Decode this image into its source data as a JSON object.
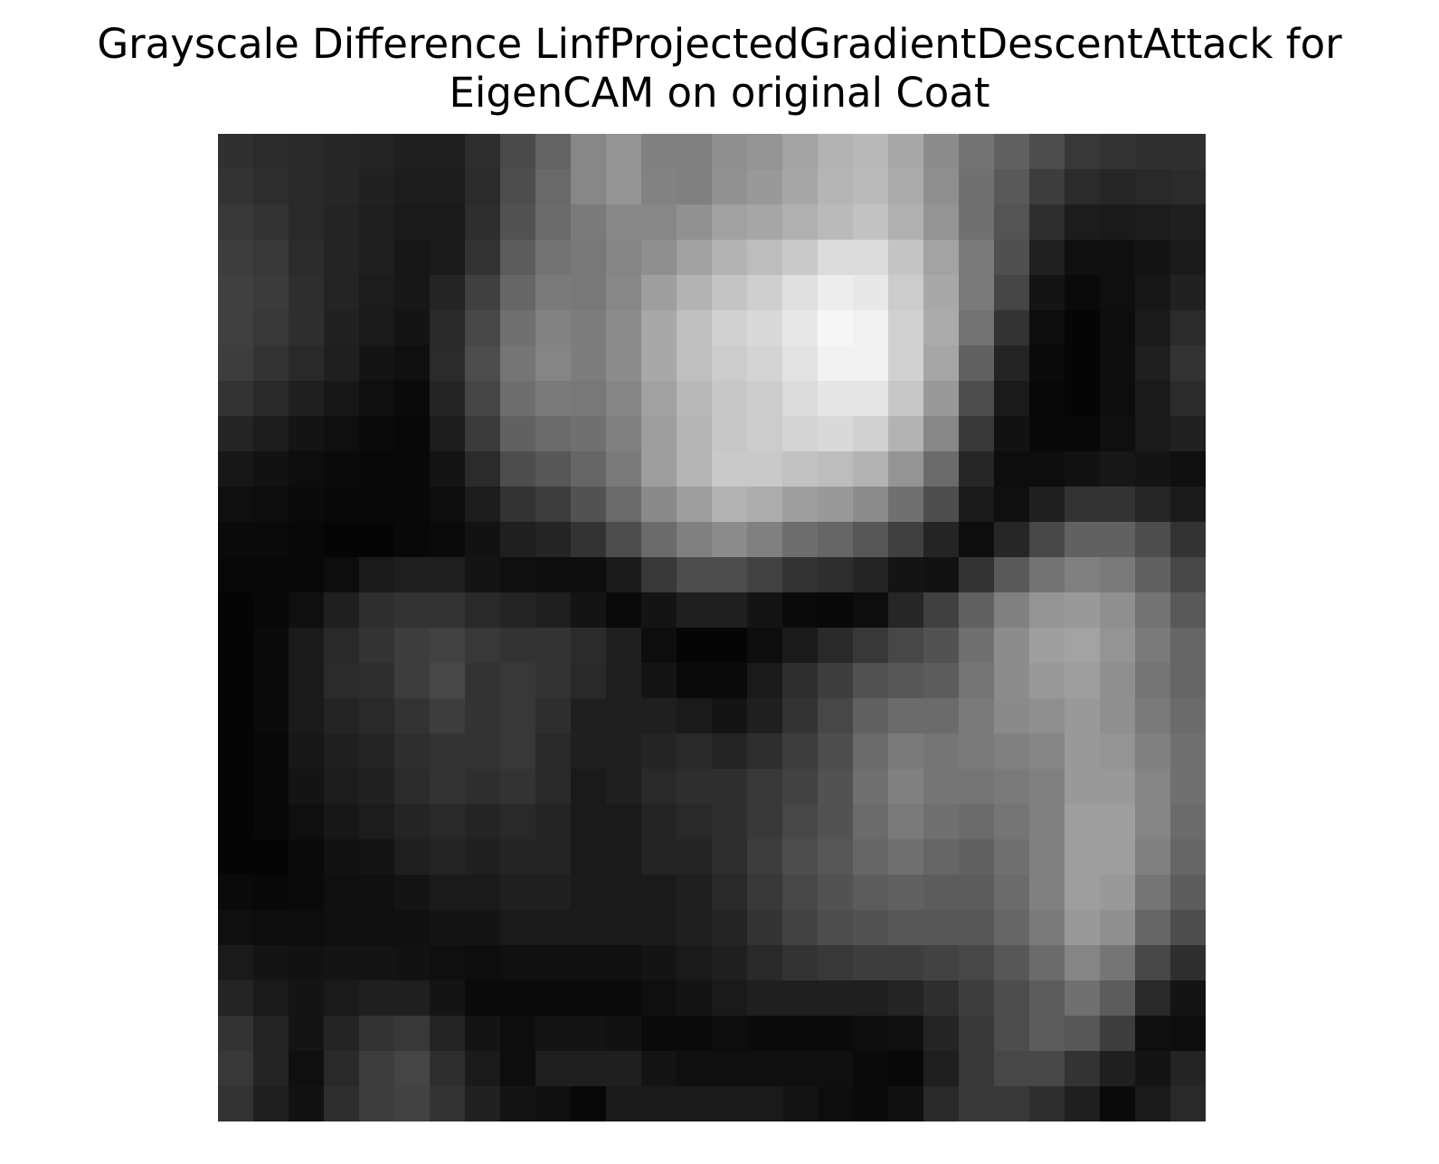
{
  "chart_data": {
    "type": "heatmap",
    "title": "Grayscale Difference LinfProjectedGradientDescentAttack for\nEigenCAM on original Coat",
    "colormap": "gray",
    "axes_visible": false,
    "grid": false,
    "rows": 28,
    "cols": 28,
    "values": [
      [
        0.19,
        0.17,
        0.16,
        0.15,
        0.14,
        0.12,
        0.12,
        0.18,
        0.29,
        0.39,
        0.53,
        0.58,
        0.5,
        0.5,
        0.56,
        0.58,
        0.64,
        0.7,
        0.72,
        0.66,
        0.55,
        0.45,
        0.38,
        0.3,
        0.22,
        0.2,
        0.19,
        0.19
      ],
      [
        0.2,
        0.18,
        0.16,
        0.15,
        0.13,
        0.11,
        0.11,
        0.17,
        0.3,
        0.41,
        0.53,
        0.58,
        0.51,
        0.5,
        0.57,
        0.6,
        0.65,
        0.71,
        0.73,
        0.67,
        0.56,
        0.44,
        0.35,
        0.24,
        0.17,
        0.15,
        0.16,
        0.17
      ],
      [
        0.22,
        0.2,
        0.16,
        0.14,
        0.12,
        0.1,
        0.1,
        0.18,
        0.32,
        0.42,
        0.48,
        0.53,
        0.53,
        0.57,
        0.63,
        0.65,
        0.69,
        0.73,
        0.76,
        0.69,
        0.58,
        0.44,
        0.33,
        0.18,
        0.11,
        0.1,
        0.11,
        0.12
      ],
      [
        0.24,
        0.22,
        0.17,
        0.14,
        0.12,
        0.09,
        0.1,
        0.2,
        0.36,
        0.45,
        0.47,
        0.52,
        0.56,
        0.63,
        0.7,
        0.74,
        0.79,
        0.86,
        0.86,
        0.77,
        0.64,
        0.48,
        0.31,
        0.13,
        0.06,
        0.06,
        0.08,
        0.1
      ],
      [
        0.25,
        0.23,
        0.18,
        0.14,
        0.11,
        0.09,
        0.14,
        0.25,
        0.4,
        0.48,
        0.47,
        0.53,
        0.62,
        0.7,
        0.77,
        0.81,
        0.88,
        0.93,
        0.91,
        0.8,
        0.66,
        0.48,
        0.27,
        0.08,
        0.04,
        0.06,
        0.09,
        0.13
      ],
      [
        0.25,
        0.22,
        0.18,
        0.13,
        0.1,
        0.08,
        0.16,
        0.28,
        0.44,
        0.51,
        0.49,
        0.55,
        0.66,
        0.75,
        0.82,
        0.85,
        0.91,
        0.97,
        0.95,
        0.82,
        0.67,
        0.45,
        0.2,
        0.05,
        0.02,
        0.05,
        0.1,
        0.17
      ],
      [
        0.24,
        0.2,
        0.16,
        0.12,
        0.08,
        0.06,
        0.17,
        0.3,
        0.46,
        0.52,
        0.49,
        0.55,
        0.66,
        0.75,
        0.8,
        0.83,
        0.89,
        0.95,
        0.95,
        0.82,
        0.65,
        0.38,
        0.14,
        0.04,
        0.02,
        0.05,
        0.12,
        0.2
      ],
      [
        0.2,
        0.16,
        0.12,
        0.09,
        0.06,
        0.04,
        0.14,
        0.27,
        0.43,
        0.48,
        0.47,
        0.52,
        0.63,
        0.72,
        0.78,
        0.8,
        0.86,
        0.9,
        0.9,
        0.78,
        0.6,
        0.3,
        0.1,
        0.03,
        0.02,
        0.05,
        0.1,
        0.17
      ],
      [
        0.14,
        0.11,
        0.08,
        0.06,
        0.04,
        0.03,
        0.11,
        0.23,
        0.38,
        0.42,
        0.44,
        0.5,
        0.62,
        0.71,
        0.78,
        0.8,
        0.83,
        0.85,
        0.82,
        0.7,
        0.53,
        0.22,
        0.07,
        0.03,
        0.03,
        0.06,
        0.1,
        0.13
      ],
      [
        0.09,
        0.07,
        0.05,
        0.04,
        0.03,
        0.03,
        0.08,
        0.17,
        0.3,
        0.34,
        0.4,
        0.48,
        0.62,
        0.71,
        0.79,
        0.79,
        0.76,
        0.74,
        0.7,
        0.58,
        0.42,
        0.15,
        0.05,
        0.05,
        0.07,
        0.09,
        0.08,
        0.06
      ],
      [
        0.06,
        0.05,
        0.04,
        0.03,
        0.03,
        0.03,
        0.05,
        0.11,
        0.2,
        0.24,
        0.32,
        0.42,
        0.54,
        0.62,
        0.7,
        0.68,
        0.62,
        0.6,
        0.55,
        0.44,
        0.3,
        0.1,
        0.06,
        0.12,
        0.2,
        0.2,
        0.15,
        0.1
      ],
      [
        0.04,
        0.04,
        0.03,
        0.02,
        0.02,
        0.03,
        0.04,
        0.07,
        0.12,
        0.14,
        0.2,
        0.3,
        0.42,
        0.5,
        0.55,
        0.5,
        0.43,
        0.4,
        0.34,
        0.25,
        0.14,
        0.05,
        0.15,
        0.28,
        0.38,
        0.38,
        0.3,
        0.2
      ],
      [
        0.03,
        0.03,
        0.03,
        0.05,
        0.1,
        0.12,
        0.12,
        0.08,
        0.06,
        0.05,
        0.05,
        0.1,
        0.22,
        0.3,
        0.3,
        0.26,
        0.2,
        0.18,
        0.14,
        0.08,
        0.07,
        0.2,
        0.35,
        0.45,
        0.5,
        0.48,
        0.38,
        0.28
      ],
      [
        0.02,
        0.03,
        0.06,
        0.12,
        0.18,
        0.2,
        0.2,
        0.16,
        0.14,
        0.12,
        0.08,
        0.04,
        0.08,
        0.12,
        0.12,
        0.08,
        0.04,
        0.03,
        0.05,
        0.15,
        0.25,
        0.38,
        0.5,
        0.58,
        0.6,
        0.56,
        0.45,
        0.35
      ],
      [
        0.02,
        0.04,
        0.1,
        0.16,
        0.2,
        0.24,
        0.26,
        0.22,
        0.2,
        0.2,
        0.17,
        0.12,
        0.05,
        0.02,
        0.02,
        0.05,
        0.1,
        0.16,
        0.22,
        0.28,
        0.32,
        0.44,
        0.55,
        0.62,
        0.64,
        0.58,
        0.48,
        0.4
      ],
      [
        0.02,
        0.04,
        0.1,
        0.17,
        0.18,
        0.24,
        0.28,
        0.2,
        0.22,
        0.2,
        0.16,
        0.12,
        0.08,
        0.04,
        0.04,
        0.1,
        0.18,
        0.24,
        0.32,
        0.34,
        0.36,
        0.46,
        0.55,
        0.6,
        0.62,
        0.56,
        0.46,
        0.4
      ],
      [
        0.02,
        0.04,
        0.1,
        0.14,
        0.16,
        0.2,
        0.24,
        0.2,
        0.22,
        0.18,
        0.12,
        0.12,
        0.12,
        0.1,
        0.08,
        0.12,
        0.2,
        0.28,
        0.38,
        0.42,
        0.42,
        0.48,
        0.54,
        0.56,
        0.6,
        0.56,
        0.48,
        0.42
      ],
      [
        0.02,
        0.03,
        0.09,
        0.12,
        0.14,
        0.18,
        0.2,
        0.2,
        0.22,
        0.16,
        0.12,
        0.12,
        0.14,
        0.16,
        0.14,
        0.18,
        0.24,
        0.3,
        0.42,
        0.48,
        0.46,
        0.48,
        0.5,
        0.52,
        0.6,
        0.58,
        0.5,
        0.44
      ],
      [
        0.02,
        0.03,
        0.08,
        0.11,
        0.13,
        0.17,
        0.2,
        0.18,
        0.2,
        0.16,
        0.1,
        0.12,
        0.16,
        0.18,
        0.18,
        0.22,
        0.26,
        0.32,
        0.44,
        0.5,
        0.46,
        0.46,
        0.48,
        0.5,
        0.6,
        0.6,
        0.52,
        0.44
      ],
      [
        0.02,
        0.03,
        0.06,
        0.09,
        0.11,
        0.14,
        0.16,
        0.14,
        0.16,
        0.14,
        0.1,
        0.1,
        0.14,
        0.16,
        0.18,
        0.22,
        0.28,
        0.32,
        0.42,
        0.48,
        0.44,
        0.42,
        0.46,
        0.5,
        0.62,
        0.62,
        0.52,
        0.42
      ],
      [
        0.02,
        0.02,
        0.04,
        0.07,
        0.08,
        0.12,
        0.14,
        0.12,
        0.14,
        0.14,
        0.1,
        0.1,
        0.14,
        0.14,
        0.18,
        0.24,
        0.3,
        0.34,
        0.4,
        0.44,
        0.4,
        0.38,
        0.44,
        0.5,
        0.62,
        0.62,
        0.5,
        0.4
      ],
      [
        0.04,
        0.03,
        0.04,
        0.06,
        0.06,
        0.08,
        0.1,
        0.1,
        0.12,
        0.12,
        0.1,
        0.1,
        0.1,
        0.12,
        0.16,
        0.22,
        0.28,
        0.32,
        0.36,
        0.38,
        0.36,
        0.36,
        0.42,
        0.5,
        0.62,
        0.6,
        0.46,
        0.36
      ],
      [
        0.06,
        0.05,
        0.05,
        0.06,
        0.06,
        0.06,
        0.08,
        0.08,
        0.1,
        0.1,
        0.1,
        0.1,
        0.1,
        0.12,
        0.14,
        0.2,
        0.26,
        0.3,
        0.32,
        0.34,
        0.34,
        0.34,
        0.4,
        0.48,
        0.6,
        0.56,
        0.4,
        0.3
      ],
      [
        0.1,
        0.08,
        0.07,
        0.08,
        0.08,
        0.07,
        0.06,
        0.05,
        0.06,
        0.06,
        0.06,
        0.06,
        0.08,
        0.1,
        0.12,
        0.16,
        0.2,
        0.22,
        0.24,
        0.24,
        0.26,
        0.28,
        0.34,
        0.42,
        0.52,
        0.46,
        0.28,
        0.18
      ],
      [
        0.14,
        0.1,
        0.08,
        0.1,
        0.12,
        0.12,
        0.08,
        0.04,
        0.04,
        0.04,
        0.04,
        0.04,
        0.06,
        0.08,
        0.1,
        0.12,
        0.12,
        0.12,
        0.12,
        0.14,
        0.18,
        0.24,
        0.3,
        0.36,
        0.44,
        0.36,
        0.16,
        0.08
      ],
      [
        0.2,
        0.14,
        0.08,
        0.14,
        0.2,
        0.22,
        0.14,
        0.08,
        0.05,
        0.08,
        0.08,
        0.07,
        0.04,
        0.04,
        0.05,
        0.04,
        0.04,
        0.04,
        0.05,
        0.06,
        0.14,
        0.22,
        0.3,
        0.36,
        0.34,
        0.24,
        0.06,
        0.05
      ],
      [
        0.22,
        0.14,
        0.06,
        0.16,
        0.24,
        0.27,
        0.18,
        0.1,
        0.05,
        0.12,
        0.12,
        0.12,
        0.08,
        0.06,
        0.06,
        0.06,
        0.06,
        0.06,
        0.04,
        0.03,
        0.12,
        0.22,
        0.28,
        0.28,
        0.2,
        0.12,
        0.08,
        0.14
      ],
      [
        0.2,
        0.12,
        0.07,
        0.18,
        0.24,
        0.26,
        0.2,
        0.13,
        0.08,
        0.06,
        0.03,
        0.1,
        0.1,
        0.1,
        0.1,
        0.1,
        0.08,
        0.05,
        0.04,
        0.06,
        0.16,
        0.22,
        0.22,
        0.18,
        0.12,
        0.04,
        0.1,
        0.16
      ]
    ]
  }
}
